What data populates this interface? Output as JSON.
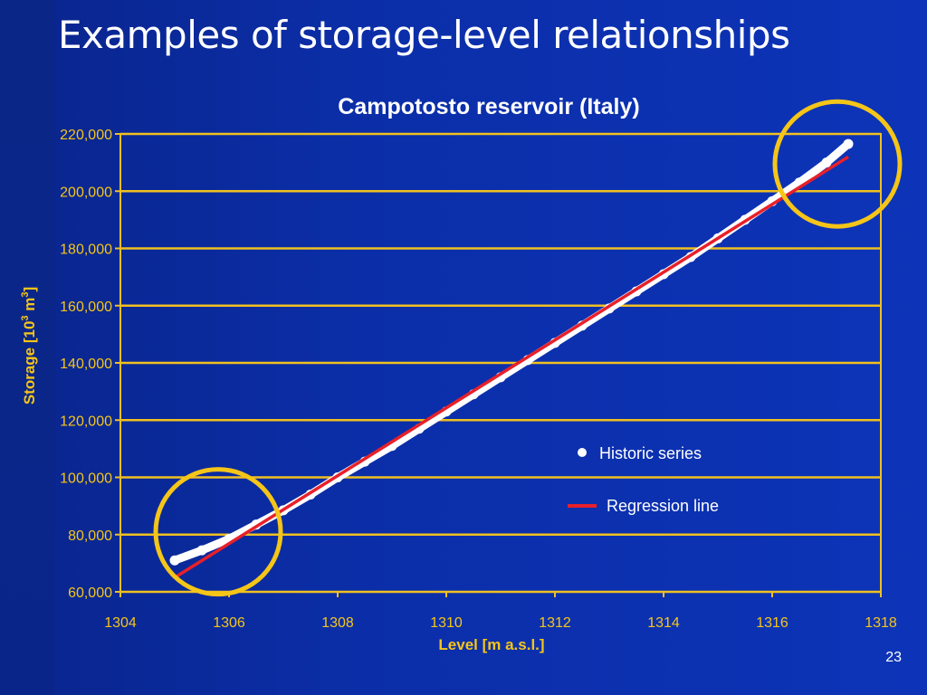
{
  "slide": {
    "title": "Examples of storage-level relationships",
    "page_number": "23"
  },
  "colors": {
    "background": "#0b2ea8",
    "text_accent": "#f5c518",
    "gridline": "#f0c020",
    "series_points": "#ffffff",
    "regression": "#e8202a",
    "highlight_circle": "#f5c518"
  },
  "chart_data": {
    "type": "scatter",
    "title": "Campotosto reservoir (Italy)",
    "xlabel": "Level [m a.s.l.]",
    "ylabel": "Storage [10",
    "ylabel_sup1": "3",
    "ylabel_mid": " m",
    "ylabel_sup2": "3",
    "ylabel_end": "]",
    "xlim": [
      1304,
      1318
    ],
    "ylim": [
      60000,
      220000
    ],
    "x_ticks": [
      1304,
      1306,
      1308,
      1310,
      1312,
      1314,
      1316,
      1318
    ],
    "x_tick_labels": [
      "1304",
      "1306",
      "1308",
      "1310",
      "1312",
      "1314",
      "1316",
      "1318"
    ],
    "y_ticks": [
      60000,
      80000,
      100000,
      120000,
      140000,
      160000,
      180000,
      200000,
      220000
    ],
    "y_tick_labels": [
      "60,000",
      "80,000",
      "100,000",
      "120,000",
      "140,000",
      "160,000",
      "180,000",
      "200,000",
      "220,000"
    ],
    "grid": "horizontal",
    "legend_position": "right-center",
    "series": [
      {
        "name": "Historic series",
        "kind": "points",
        "x": [
          1305.0,
          1305.5,
          1306.0,
          1306.5,
          1307.0,
          1307.5,
          1308.0,
          1308.5,
          1309.0,
          1309.5,
          1310.0,
          1310.5,
          1311.0,
          1311.5,
          1312.0,
          1312.5,
          1313.0,
          1313.5,
          1314.0,
          1314.5,
          1315.0,
          1315.5,
          1316.0,
          1316.5,
          1317.0,
          1317.4
        ],
        "y": [
          71000,
          74500,
          78500,
          83500,
          88500,
          94000,
          100000,
          105500,
          111000,
          117000,
          123000,
          129000,
          135000,
          141000,
          147000,
          153000,
          159000,
          165000,
          171000,
          177000,
          183500,
          190000,
          196500,
          203000,
          210000,
          216500
        ]
      },
      {
        "name": "Regression line",
        "kind": "line",
        "x": [
          1305.0,
          1317.4
        ],
        "y": [
          65000,
          212000
        ]
      }
    ],
    "highlights": [
      {
        "cx": 1305.8,
        "cy": 81000
      },
      {
        "cx": 1317.2,
        "cy": 209500
      }
    ]
  }
}
